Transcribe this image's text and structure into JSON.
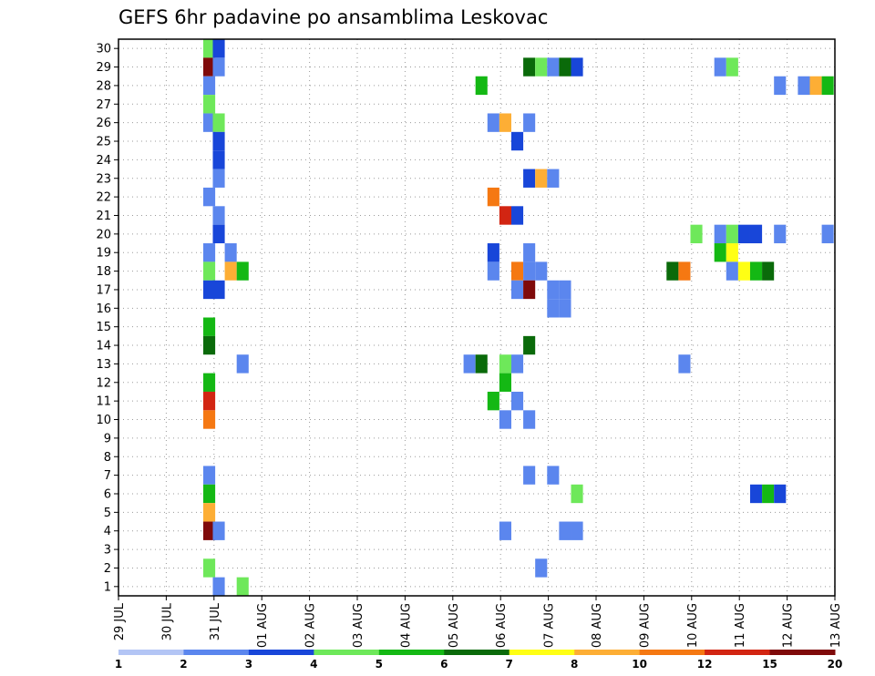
{
  "chart_data": {
    "type": "heatmap",
    "title": "GEFS 6hr padavine po ansamblima Leskovac",
    "x_tick_labels": [
      "29 JUL",
      "30 JUL",
      "31 JUL",
      "01 AUG",
      "02 AUG",
      "03 AUG",
      "04 AUG",
      "05 AUG",
      "06 AUG",
      "07 AUG",
      "08 AUG",
      "09 AUG",
      "10 AUG",
      "11 AUG",
      "12 AUG",
      "13 AUG"
    ],
    "y_tick_labels": [
      "1",
      "2",
      "3",
      "4",
      "5",
      "6",
      "7",
      "8",
      "9",
      "10",
      "11",
      "12",
      "13",
      "14",
      "15",
      "16",
      "17",
      "18",
      "19",
      "20",
      "21",
      "22",
      "23",
      "24",
      "25",
      "26",
      "27",
      "28",
      "29",
      "30"
    ],
    "x_unit": "days_since_29_JUL",
    "xlim": [
      0,
      15
    ],
    "ylim": [
      0.5,
      30.5
    ],
    "cell_width_days": 0.25,
    "grid": true,
    "legend": "bottom colorbar",
    "colorbar": {
      "labels": [
        "1",
        "2",
        "3",
        "4",
        "5",
        "6",
        "7",
        "8",
        "10",
        "12",
        "15",
        "20"
      ],
      "colors": [
        "#b3c5f5",
        "#5b86ee",
        "#1846d9",
        "#6ee85a",
        "#14b814",
        "#0a6a0a",
        "#ffff14",
        "#fdae35",
        "#f57812",
        "#d22512",
        "#7f0a0a"
      ]
    },
    "cells": [
      [
        1.9,
        30,
        3
      ],
      [
        2.1,
        30,
        2
      ],
      [
        1.9,
        29,
        10
      ],
      [
        2.1,
        29,
        1
      ],
      [
        8.6,
        29,
        5
      ],
      [
        8.85,
        29,
        3
      ],
      [
        9.1,
        29,
        1
      ],
      [
        9.35,
        29,
        5
      ],
      [
        9.6,
        29,
        2
      ],
      [
        12.6,
        29,
        1
      ],
      [
        12.85,
        29,
        3
      ],
      [
        1.9,
        28,
        1
      ],
      [
        7.6,
        28,
        4
      ],
      [
        13.85,
        28,
        1
      ],
      [
        14.35,
        28,
        1
      ],
      [
        14.6,
        28,
        7
      ],
      [
        14.85,
        28,
        4
      ],
      [
        1.9,
        27,
        3
      ],
      [
        1.9,
        26,
        1
      ],
      [
        2.1,
        26,
        3
      ],
      [
        7.85,
        26,
        1
      ],
      [
        8.1,
        26,
        7
      ],
      [
        8.6,
        26,
        1
      ],
      [
        2.1,
        25,
        2
      ],
      [
        8.35,
        25,
        2
      ],
      [
        2.1,
        24,
        2
      ],
      [
        2.1,
        23,
        1
      ],
      [
        8.6,
        23,
        2
      ],
      [
        8.85,
        23,
        7
      ],
      [
        9.1,
        23,
        1
      ],
      [
        1.9,
        22,
        1
      ],
      [
        7.85,
        22,
        8
      ],
      [
        2.1,
        21,
        1
      ],
      [
        8.1,
        21,
        9
      ],
      [
        8.35,
        21,
        2
      ],
      [
        2.1,
        20,
        2
      ],
      [
        12.1,
        20,
        3
      ],
      [
        12.6,
        20,
        1
      ],
      [
        12.85,
        20,
        3
      ],
      [
        13.1,
        20,
        2
      ],
      [
        13.35,
        20,
        2
      ],
      [
        13.85,
        20,
        1
      ],
      [
        14.85,
        20,
        1
      ],
      [
        1.9,
        19,
        1
      ],
      [
        2.35,
        19,
        1
      ],
      [
        7.85,
        19,
        2
      ],
      [
        8.6,
        19,
        1
      ],
      [
        12.6,
        19,
        4
      ],
      [
        12.85,
        19,
        6
      ],
      [
        1.9,
        18,
        3
      ],
      [
        2.35,
        18,
        7
      ],
      [
        2.6,
        18,
        4
      ],
      [
        7.85,
        18,
        1
      ],
      [
        8.35,
        18,
        8
      ],
      [
        8.6,
        18,
        1
      ],
      [
        8.85,
        18,
        1
      ],
      [
        11.6,
        18,
        5
      ],
      [
        11.85,
        18,
        8
      ],
      [
        12.85,
        18,
        1
      ],
      [
        13.1,
        18,
        6
      ],
      [
        13.35,
        18,
        4
      ],
      [
        13.6,
        18,
        5
      ],
      [
        1.9,
        17,
        2
      ],
      [
        2.1,
        17,
        2
      ],
      [
        8.35,
        17,
        1
      ],
      [
        8.6,
        17,
        10
      ],
      [
        9.1,
        17,
        1
      ],
      [
        9.35,
        17,
        1
      ],
      [
        9.1,
        16,
        1
      ],
      [
        9.35,
        16,
        1
      ],
      [
        1.9,
        15,
        4
      ],
      [
        1.9,
        14,
        5
      ],
      [
        8.6,
        14,
        5
      ],
      [
        2.6,
        13,
        1
      ],
      [
        7.35,
        13,
        1
      ],
      [
        7.6,
        13,
        5
      ],
      [
        8.1,
        13,
        3
      ],
      [
        8.35,
        13,
        1
      ],
      [
        11.85,
        13,
        1
      ],
      [
        1.9,
        12,
        4
      ],
      [
        8.1,
        12,
        4
      ],
      [
        1.9,
        11,
        9
      ],
      [
        7.85,
        11,
        4
      ],
      [
        8.35,
        11,
        1
      ],
      [
        1.9,
        10,
        8
      ],
      [
        8.1,
        10,
        1
      ],
      [
        8.6,
        10,
        1
      ],
      [
        1.9,
        7,
        1
      ],
      [
        8.6,
        7,
        1
      ],
      [
        9.1,
        7,
        1
      ],
      [
        1.9,
        6,
        4
      ],
      [
        9.6,
        6,
        3
      ],
      [
        13.35,
        6,
        2
      ],
      [
        13.6,
        6,
        4
      ],
      [
        13.85,
        6,
        2
      ],
      [
        1.9,
        5,
        7
      ],
      [
        1.9,
        4,
        10
      ],
      [
        2.1,
        4,
        1
      ],
      [
        8.1,
        4,
        1
      ],
      [
        9.35,
        4,
        1
      ],
      [
        9.6,
        4,
        1
      ],
      [
        1.9,
        2,
        3
      ],
      [
        8.85,
        2,
        1
      ],
      [
        2.1,
        1,
        1
      ],
      [
        2.6,
        1,
        3
      ]
    ]
  }
}
